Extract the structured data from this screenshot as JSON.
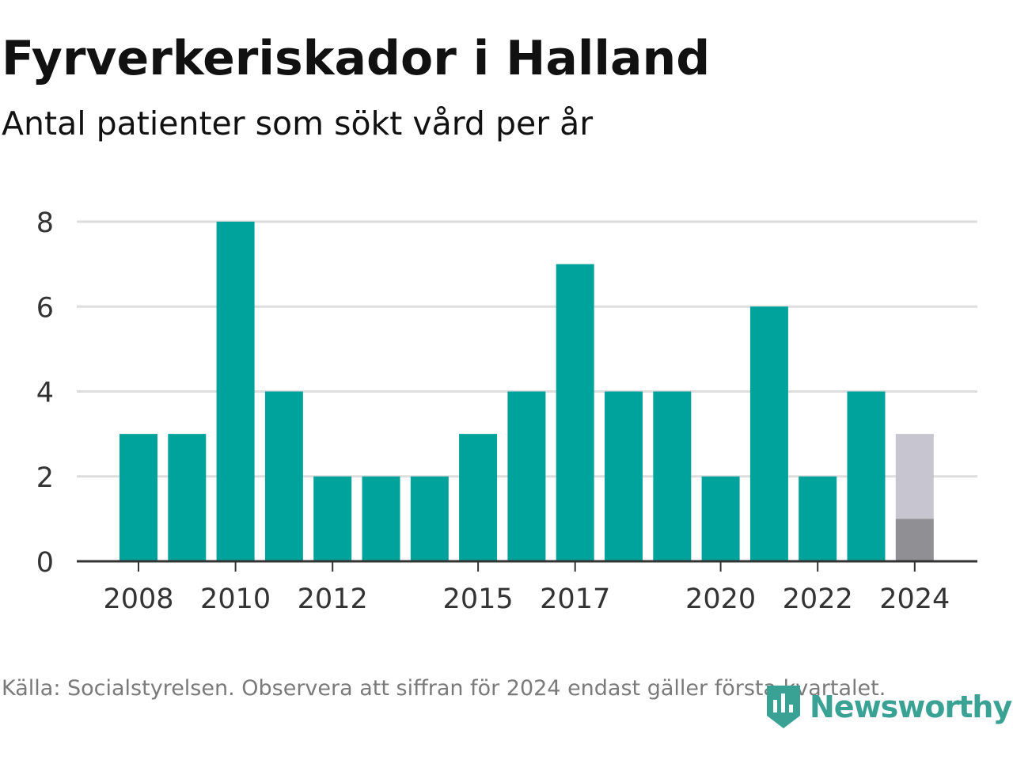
{
  "title": "Fyrverkeriskador i Halland",
  "subtitle": "Antal patienter som sökt vård per år",
  "footer": "Källa: Socialstyrelsen. Observera att siffran för 2024 endast gäller första kvartalet.",
  "logo": {
    "text": "Newsworthy",
    "icon": "newsworthy-logo-icon",
    "color": "#3aa295"
  },
  "colors": {
    "bar": "#00a39b",
    "bar_highlight_base": "#8f8f94",
    "bar_highlight_remainder": "#c7c6d0",
    "grid": "#dddddd",
    "axis": "#333333",
    "tick_text": "#333333"
  },
  "chart_data": {
    "type": "bar",
    "title": "Fyrverkeriskador i Halland",
    "subtitle": "Antal patienter som sökt vård per år",
    "xlabel": "",
    "ylabel": "",
    "categories": [
      "2008",
      "2009",
      "2010",
      "2011",
      "2012",
      "2013",
      "2014",
      "2015",
      "2016",
      "2017",
      "2018",
      "2019",
      "2020",
      "2021",
      "2022",
      "2023",
      "2024"
    ],
    "values": [
      3,
      3,
      8,
      4,
      2,
      2,
      2,
      3,
      4,
      7,
      4,
      4,
      2,
      6,
      2,
      4,
      1
    ],
    "highlight": {
      "category": "2024",
      "value": 1,
      "stacked_remainder": 2,
      "stacked_total": 3
    },
    "ylim": [
      0,
      8
    ],
    "yticks": [
      0,
      2,
      4,
      6,
      8
    ],
    "xtick_labels": [
      "2008",
      "2010",
      "2012",
      "2015",
      "2017",
      "2020",
      "2022",
      "2024"
    ],
    "grid": true,
    "legend": "none"
  }
}
